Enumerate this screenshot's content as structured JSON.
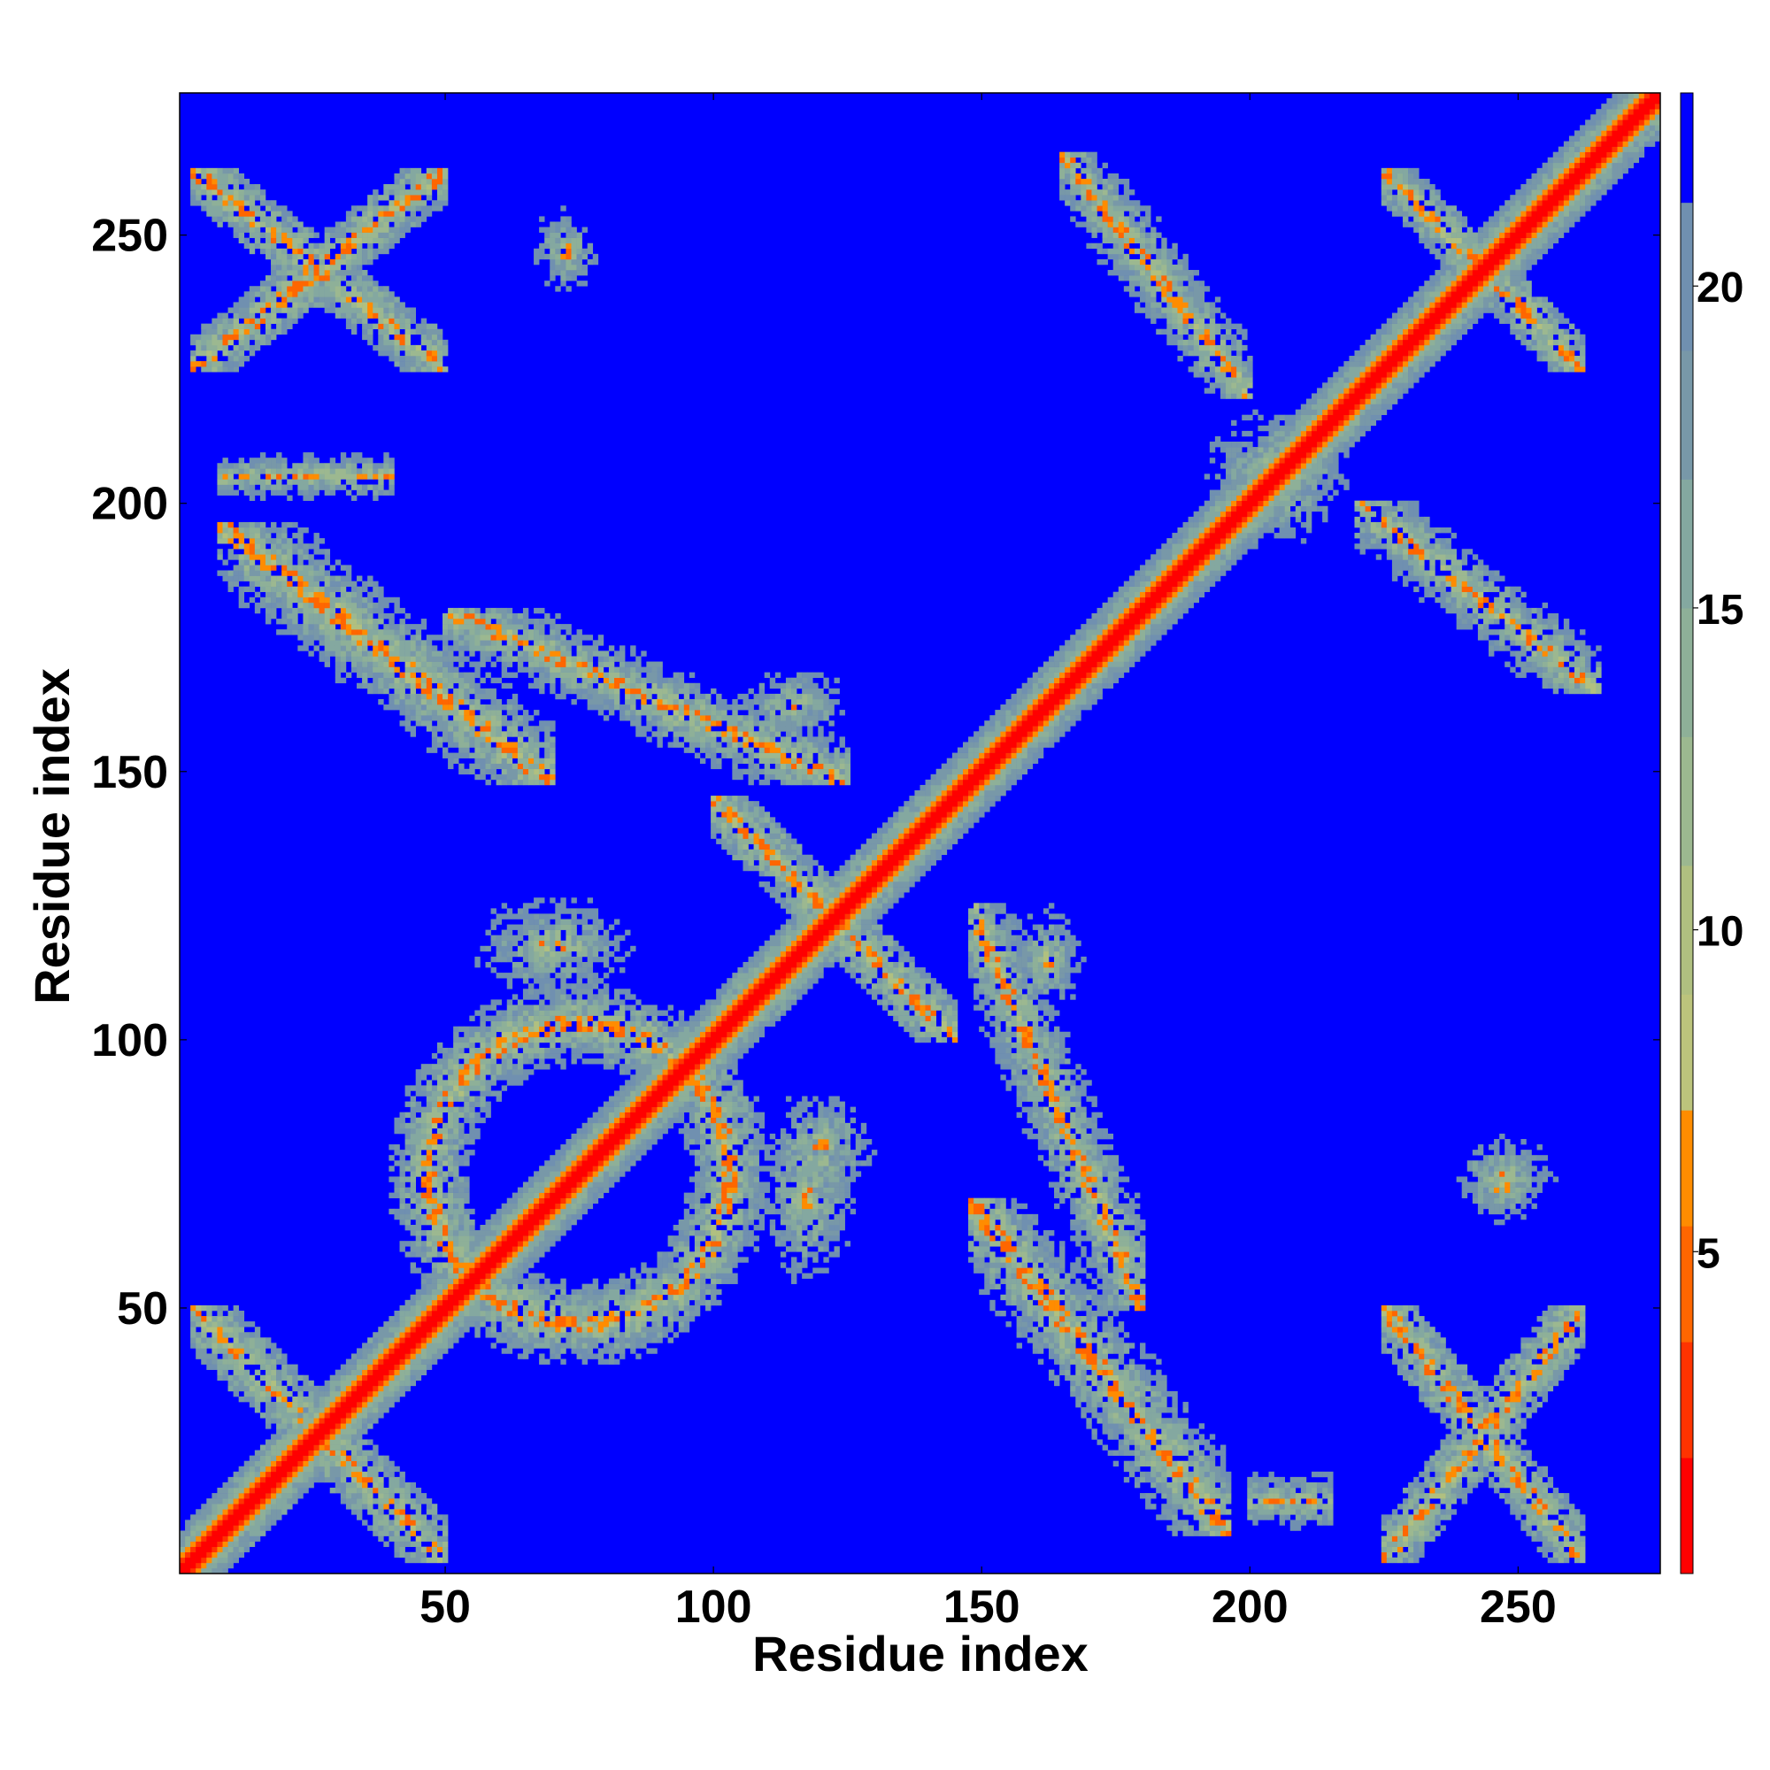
{
  "chart_data": {
    "type": "heatmap",
    "title": "",
    "xlabel": "Residue index",
    "ylabel": "Residue index",
    "xlim": [
      1,
      276
    ],
    "ylim": [
      1,
      276
    ],
    "n_residues": 276,
    "x_ticks": [
      50,
      100,
      150,
      200,
      250
    ],
    "y_ticks": [
      50,
      100,
      150,
      200,
      250
    ],
    "colorbar": {
      "ticks": [
        5,
        10,
        15,
        20
      ],
      "range": [
        0,
        23
      ],
      "levels": [
        {
          "upper": 1.8,
          "color": "#ff0000"
        },
        {
          "upper": 3.6,
          "color": "#ff3300"
        },
        {
          "upper": 5.4,
          "color": "#ff6600"
        },
        {
          "upper": 7.2,
          "color": "#ff8c00"
        },
        {
          "upper": 9.0,
          "color": "#bcc47c"
        },
        {
          "upper": 11.0,
          "color": "#b0c080"
        },
        {
          "upper": 13.0,
          "color": "#9cb890"
        },
        {
          "upper": 15.0,
          "color": "#8eb098"
        },
        {
          "upper": 17.0,
          "color": "#84a8a0"
        },
        {
          "upper": 19.0,
          "color": "#7898a8"
        },
        {
          "upper": 21.3,
          "color": "#7090b0"
        },
        {
          "upper": 23.0,
          "color": "#0000ff"
        }
      ]
    },
    "background_color": "#0000ff",
    "diagonal_color": "#ff0000",
    "contact_regions": [
      {
        "x": [
          3,
          50
        ],
        "y": [
          3,
          50
        ],
        "kind": "X"
      },
      {
        "x": [
          3,
          50
        ],
        "y": [
          225,
          262
        ],
        "kind": "X"
      },
      {
        "x": [
          225,
          262
        ],
        "y": [
          3,
          50
        ],
        "kind": "X"
      },
      {
        "x": [
          225,
          262
        ],
        "y": [
          225,
          262
        ],
        "kind": "X"
      },
      {
        "x": [
          8,
          70
        ],
        "y": [
          148,
          196
        ],
        "kind": "band"
      },
      {
        "x": [
          148,
          196
        ],
        "y": [
          8,
          70
        ],
        "kind": "band"
      },
      {
        "x": [
          50,
          125
        ],
        "y": [
          148,
          180
        ],
        "kind": "band"
      },
      {
        "x": [
          148,
          180
        ],
        "y": [
          50,
          125
        ],
        "kind": "band"
      },
      {
        "x": [
          40,
          110
        ],
        "y": [
          40,
          110
        ],
        "kind": "ring"
      },
      {
        "x": [
          100,
          145
        ],
        "y": [
          100,
          145
        ],
        "kind": "X"
      },
      {
        "x": [
          40,
          100
        ],
        "y": [
          100,
          135
        ],
        "kind": "blob"
      },
      {
        "x": [
          100,
          135
        ],
        "y": [
          40,
          100
        ],
        "kind": "blob"
      },
      {
        "x": [
          100,
          140
        ],
        "y": [
          60,
          100
        ],
        "kind": "blob"
      },
      {
        "x": [
          150,
          175
        ],
        "y": [
          95,
          135
        ],
        "kind": "blob"
      },
      {
        "x": [
          95,
          135
        ],
        "y": [
          150,
          175
        ],
        "kind": "blob"
      },
      {
        "x": [
          180,
          230
        ],
        "y": [
          180,
          230
        ],
        "kind": "block"
      },
      {
        "x": [
          165,
          200
        ],
        "y": [
          220,
          265
        ],
        "kind": "band"
      },
      {
        "x": [
          220,
          265
        ],
        "y": [
          165,
          200
        ],
        "kind": "band"
      },
      {
        "x": [
          60,
          85
        ],
        "y": [
          232,
          262
        ],
        "kind": "blob"
      },
      {
        "x": [
          232,
          262
        ],
        "y": [
          60,
          85
        ],
        "kind": "blob"
      },
      {
        "x": [
          230,
          265
        ],
        "y": [
          62,
          88
        ],
        "kind": "blob"
      },
      {
        "x": [
          8,
          40
        ],
        "y": [
          200,
          210
        ],
        "kind": "strip"
      },
      {
        "x": [
          200,
          215
        ],
        "y": [
          8,
          20
        ],
        "kind": "strip"
      }
    ]
  }
}
